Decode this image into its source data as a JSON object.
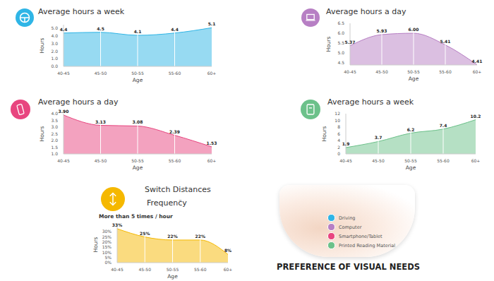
{
  "chart_data": [
    {
      "type": "area",
      "title": "Average hours a week",
      "y_label": "Hours",
      "x_label": "Age",
      "categories": [
        "40-45",
        "45-50",
        "50-55",
        "55-60",
        "60+"
      ],
      "values": [
        4.4,
        4.5,
        4.1,
        4.4,
        5.1
      ],
      "color": "#2fb5e6",
      "ylim": [
        0,
        5.5
      ],
      "yticks": [
        {
          "value": 0,
          "label": "0.0"
        },
        {
          "value": 1,
          "label": "1.0"
        },
        {
          "value": 2,
          "label": "2.0"
        },
        {
          "value": 3,
          "label": "3.0"
        },
        {
          "value": 4,
          "label": "4.0"
        },
        {
          "value": 5,
          "label": "5.0"
        }
      ],
      "grid": "x",
      "data_labels": true
    },
    {
      "type": "area",
      "title": "Average hours a day",
      "y_label": "Hours",
      "x_label": "Age",
      "categories": [
        "40-45",
        "45-50",
        "50-55",
        "55-60",
        "60+"
      ],
      "values": [
        5.37,
        5.93,
        6.0,
        5.41,
        4.41
      ],
      "value_labels": [
        "5.37",
        "5.93",
        "6.00",
        "5.41",
        "4.41"
      ],
      "color": "#b77fc4",
      "ylim": [
        4.4,
        6.5
      ],
      "yticks": [
        4.5,
        {
          "value": 5,
          "label": "5.0"
        },
        5.5,
        {
          "value": 6,
          "label": "6.0"
        },
        6.5
      ],
      "grid": "x",
      "data_labels": true
    },
    {
      "type": "area",
      "title": "Average hours a day",
      "y_label": "Hours",
      "x_label": "Age",
      "categories": [
        "40-45",
        "45-50",
        "50-55",
        "55-60",
        "60+"
      ],
      "values": [
        3.9,
        3.13,
        3.08,
        2.39,
        1.53
      ],
      "value_labels": [
        "3.90",
        "3.13",
        "3.08",
        "2.39",
        "1.53"
      ],
      "color": "#e8457f",
      "ylim": [
        1,
        4
      ],
      "yticks": [
        {
          "value": 1,
          "label": "1.0"
        },
        1.5,
        {
          "value": 2,
          "label": "2.0"
        },
        2.5,
        {
          "value": 3,
          "label": "3.0"
        },
        3.5,
        {
          "value": 4,
          "label": "4.0"
        }
      ],
      "grid": "x",
      "data_labels": true
    },
    {
      "type": "area",
      "title": "Average hours a week",
      "y_label": "Hours",
      "x_label": "Age",
      "categories": [
        "40-45",
        "45-50",
        "50-55",
        "55-60",
        "60+"
      ],
      "values": [
        1.9,
        3.7,
        6.2,
        7.4,
        10.2
      ],
      "color": "#6cc18a",
      "ylim": [
        0,
        12
      ],
      "yticks": [
        0,
        2,
        4,
        6,
        8,
        10,
        12
      ],
      "grid": "x",
      "data_labels": true
    },
    {
      "type": "area",
      "title": "Switch Distances",
      "subtitle": "Frequency",
      "annotations": [
        "™",
        "More than 5 times / hour"
      ],
      "y_label": "Hours",
      "x_label": "Age",
      "categories": [
        "40-45",
        "45-50",
        "50-55",
        "55-60",
        "60+"
      ],
      "values": [
        33,
        25,
        22,
        22,
        8
      ],
      "value_labels": [
        "33%",
        "25%",
        "22%",
        "22%",
        "8%"
      ],
      "color": "#f5b800",
      "ylim": [
        0,
        35
      ],
      "yticks": [
        {
          "value": 0,
          "label": "0%"
        },
        {
          "value": 5,
          "label": "5%"
        },
        {
          "value": 10,
          "label": "10%"
        },
        {
          "value": 15,
          "label": "15%"
        },
        {
          "value": 20,
          "label": "20%"
        },
        {
          "value": 25,
          "label": "25%"
        },
        {
          "value": 30,
          "label": "30%"
        }
      ],
      "grid": "x",
      "data_labels": true
    }
  ],
  "key_panel": {
    "title": "PREFERENCE OF VISUAL NEEDS",
    "items": [
      {
        "label": "Driving",
        "color": "#2fb5e6"
      },
      {
        "label": "Computer",
        "color": "#b77fc4"
      },
      {
        "label": "Smartphone/Tablet",
        "color": "#e8457f"
      },
      {
        "label": "Printed Reading Material",
        "color": "#6cc18a"
      }
    ]
  }
}
